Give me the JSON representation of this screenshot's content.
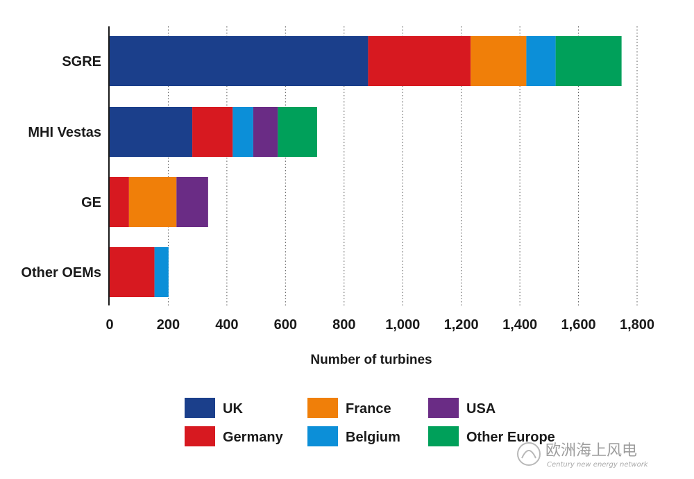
{
  "chart_data": {
    "type": "bar",
    "orientation": "horizontal",
    "stacked": true,
    "categories": [
      "SGRE",
      "MHI Vestas",
      "GE",
      "Other OEMs"
    ],
    "series": [
      {
        "name": "UK",
        "color": "#1b3f8b",
        "values": [
          882,
          282,
          0,
          0
        ]
      },
      {
        "name": "Germany",
        "color": "#d71920",
        "values": [
          350,
          138,
          66,
          153
        ]
      },
      {
        "name": "France",
        "color": "#f07f09",
        "values": [
          190,
          0,
          162,
          0
        ]
      },
      {
        "name": "Belgium",
        "color": "#0c8fd8",
        "values": [
          100,
          70,
          0,
          48
        ]
      },
      {
        "name": "USA",
        "color": "#6a2c85",
        "values": [
          0,
          84,
          108,
          0
        ]
      },
      {
        "name": "Other Europe",
        "color": "#00a05a",
        "values": [
          225,
          134,
          0,
          0
        ]
      }
    ],
    "xlabel": "Number of turbines",
    "xlim": [
      0,
      1800
    ],
    "xticks": [
      0,
      200,
      400,
      600,
      800,
      1000,
      1200,
      1400,
      1600,
      1800
    ],
    "xtick_labels": [
      "0",
      "200",
      "400",
      "600",
      "800",
      "1,000",
      "1,200",
      "1,400",
      "1,600",
      "1,800"
    ],
    "grid": "vertical-dotted",
    "legend": {
      "placement": "bottom",
      "order": [
        "UK",
        "France",
        "USA",
        "Germany",
        "Belgium",
        "Other Europe"
      ]
    }
  },
  "watermark": {
    "text": "欧洲海上风电",
    "subtext": "Century new energy network"
  }
}
